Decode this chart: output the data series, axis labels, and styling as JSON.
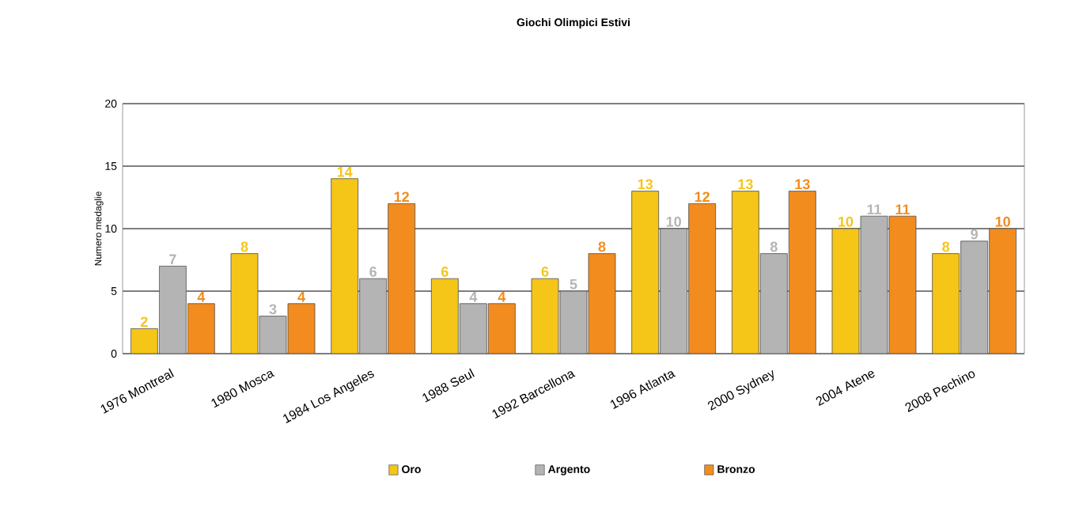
{
  "chart_data": {
    "type": "bar",
    "title": "Giochi Olimpici Estivi",
    "ylabel": "Numero medaglie",
    "categories": [
      "1976 Montreal",
      "1980 Mosca",
      "1984 Los Angeles",
      "1988 Seul",
      "1992 Barcellona",
      "1996 Atlanta",
      "2000 Sydney",
      "2004 Atene",
      "2008 Pechino"
    ],
    "series": [
      {
        "name": "Oro",
        "color": "#f5c518",
        "values": [
          2,
          8,
          14,
          6,
          6,
          13,
          13,
          10,
          8
        ]
      },
      {
        "name": "Argento",
        "color": "#b4b4b4",
        "values": [
          7,
          3,
          6,
          4,
          5,
          10,
          8,
          11,
          9
        ]
      },
      {
        "name": "Bronzo",
        "color": "#f28c1e",
        "values": [
          4,
          4,
          12,
          4,
          8,
          12,
          13,
          11,
          10
        ]
      }
    ],
    "ylim": [
      0,
      20
    ],
    "yticks": [
      0,
      5,
      10,
      15,
      20
    ],
    "grid": "y",
    "legend": "bottom",
    "data_labels": true
  }
}
